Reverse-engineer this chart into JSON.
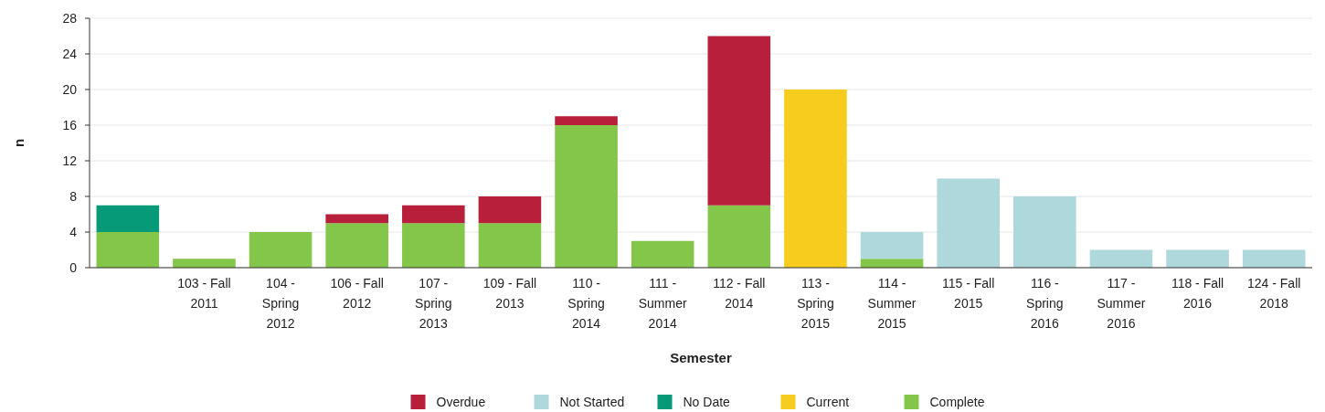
{
  "chart_data": {
    "type": "bar",
    "stacked": true,
    "xlabel": "Semester",
    "ylabel": "n",
    "categories": [
      null,
      "103 - Fall 2011",
      "104 - Spring 2012",
      "106 - Fall 2012",
      "107 - Spring 2013",
      "109 - Fall 2013",
      "110 - Spring 2014",
      "111 - Summer 2014",
      "112 - Fall 2014",
      "113 - Spring 2015",
      "114 - Summer 2015",
      "115 - Fall 2015",
      "116 - Spring 2016",
      "117 - Summer 2016",
      "118 - Fall 2016",
      "124 - Fall 2018"
    ],
    "series": [
      {
        "name": "Complete",
        "color": "#84c64a",
        "values": [
          4,
          1,
          4,
          5,
          5,
          5,
          16,
          3,
          7,
          null,
          1,
          null,
          null,
          null,
          null,
          null
        ]
      },
      {
        "name": "Current",
        "color": "#f8cb1f",
        "values": [
          null,
          null,
          null,
          null,
          null,
          null,
          null,
          null,
          null,
          20,
          null,
          null,
          null,
          null,
          null,
          null
        ]
      },
      {
        "name": "No Date",
        "color": "#079a78",
        "values": [
          3,
          null,
          null,
          null,
          null,
          null,
          null,
          null,
          null,
          null,
          null,
          null,
          null,
          null,
          null,
          null
        ]
      },
      {
        "name": "Not Started",
        "color": "#aed8dc",
        "values": [
          null,
          null,
          null,
          null,
          null,
          null,
          null,
          null,
          null,
          null,
          3,
          10,
          8,
          2,
          2,
          2
        ]
      },
      {
        "name": "Overdue",
        "color": "#b81f3a",
        "values": [
          null,
          null,
          null,
          1,
          2,
          3,
          1,
          null,
          19,
          null,
          null,
          null,
          null,
          null,
          null,
          null
        ]
      }
    ],
    "ylim": [
      0,
      28
    ],
    "yticks": [
      0,
      4,
      8,
      12,
      16,
      20,
      24,
      28
    ],
    "grid": "y",
    "legend": "bottom"
  }
}
